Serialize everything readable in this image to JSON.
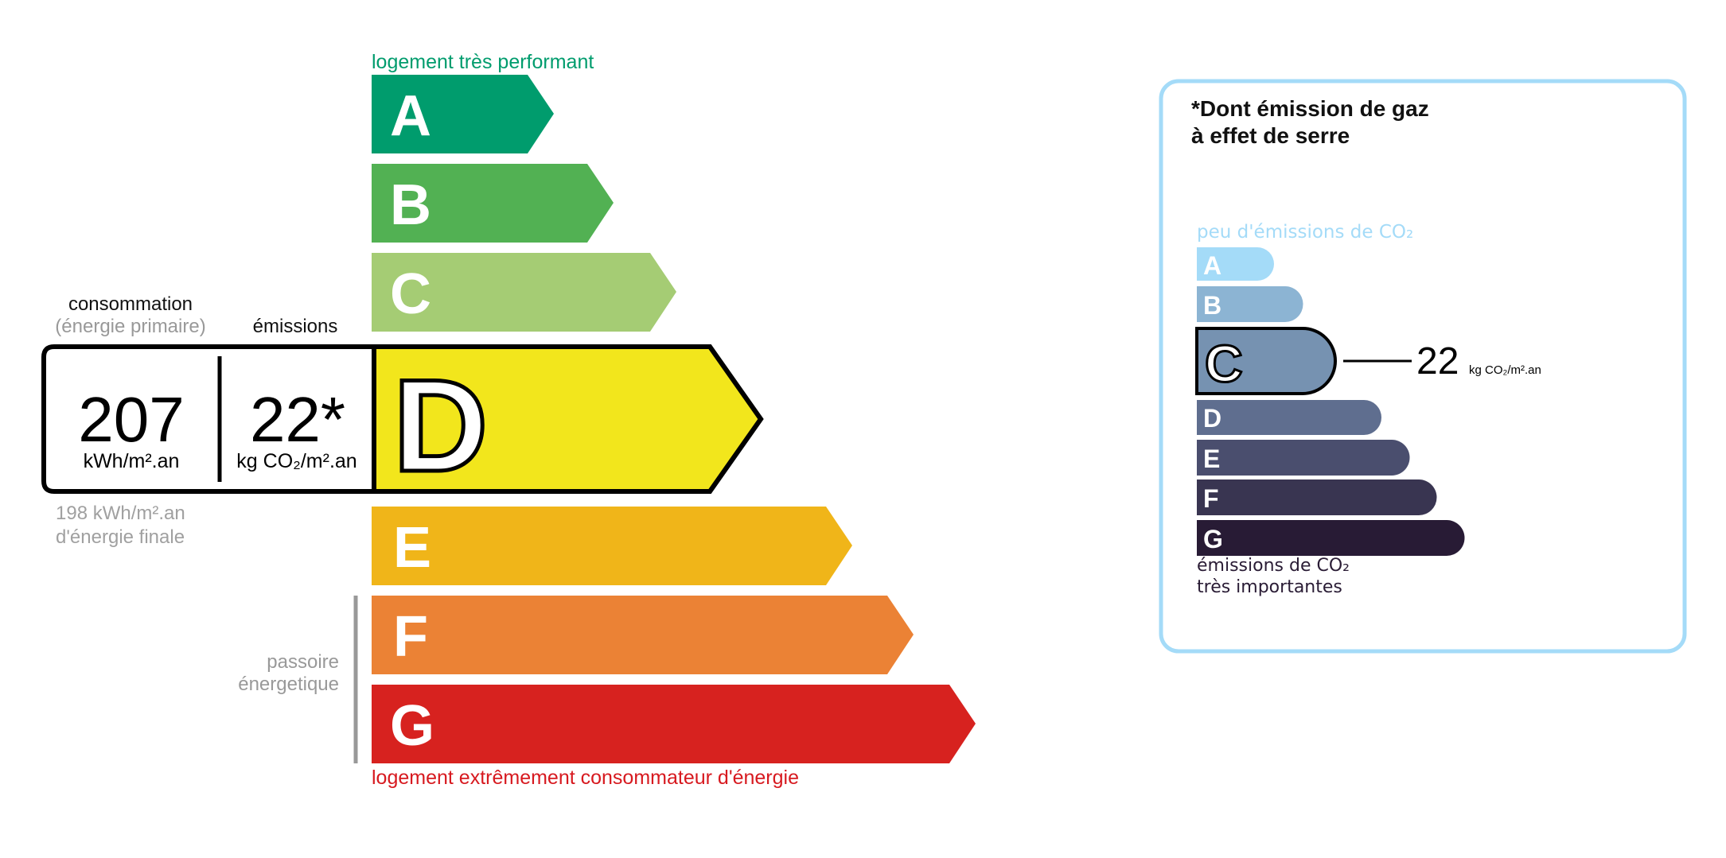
{
  "energy": {
    "top_label": "logement très performant",
    "bottom_label": "logement extrêmement consommateur d'énergie",
    "passoire_line1": "passoire",
    "passoire_line2": "énergetique",
    "classes": [
      {
        "letter": "A",
        "color": "#009c6d"
      },
      {
        "letter": "B",
        "color": "#52b153"
      },
      {
        "letter": "C",
        "color": "#a5cc74"
      },
      {
        "letter": "D",
        "color": "#f2e61c"
      },
      {
        "letter": "E",
        "color": "#f0b519"
      },
      {
        "letter": "F",
        "color": "#eb8235"
      },
      {
        "letter": "G",
        "color": "#d7221f"
      }
    ],
    "current_class": "D",
    "consumption_label": "consommation",
    "consumption_sublabel": "(énergie primaire)",
    "emissions_label": "émissions",
    "consumption_value": "207",
    "consumption_unit": "kWh/m².an",
    "emissions_value": "22*",
    "emissions_unit": "kg CO₂/m².an",
    "final_energy_value": "198 kWh/m².an",
    "final_energy_label": "d'énergie finale"
  },
  "ges": {
    "title_line1": "*Dont émission de gaz",
    "title_line2": "à effet de serre",
    "top_label": "peu d'émissions de CO₂",
    "bottom_label_line1": "émissions de CO₂",
    "bottom_label_line2": "très importantes",
    "classes": [
      {
        "letter": "A",
        "color": "#a4dbf8"
      },
      {
        "letter": "B",
        "color": "#8cb4d3"
      },
      {
        "letter": "C",
        "color": "#7692b1"
      },
      {
        "letter": "D",
        "color": "#5f6e8f"
      },
      {
        "letter": "E",
        "color": "#4a4e6e"
      },
      {
        "letter": "F",
        "color": "#393551"
      },
      {
        "letter": "G",
        "color": "#281b35"
      }
    ],
    "current_class": "C",
    "value": "22",
    "unit": "kg CO₂/m².an",
    "border_color": "#a4dbf8"
  }
}
